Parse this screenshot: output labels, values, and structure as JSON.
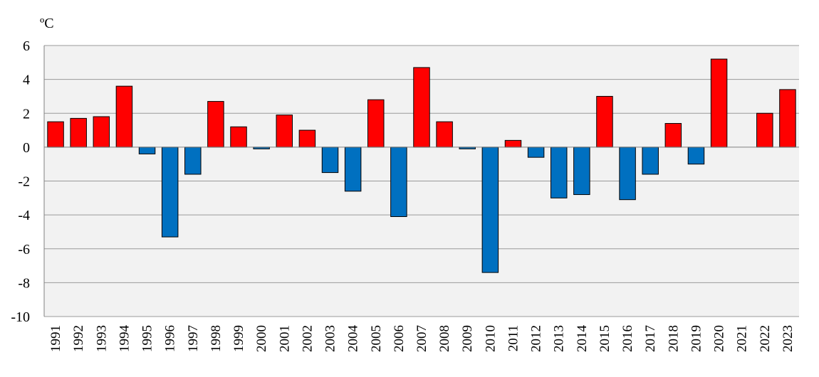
{
  "chart_data": {
    "type": "bar",
    "title": "",
    "unit_label": "ºC",
    "xlabel": "",
    "ylabel": "",
    "ylim": [
      -10,
      6
    ],
    "yticks": [
      -10,
      -8,
      -6,
      -4,
      -2,
      0,
      2,
      4,
      6
    ],
    "grid": true,
    "plot_background": "#f2f2f2",
    "colors": {
      "positive": "#ff0000",
      "negative": "#0070c0"
    },
    "categories": [
      "1991",
      "1992",
      "1993",
      "1994",
      "1995",
      "1996",
      "1997",
      "1998",
      "1999",
      "2000",
      "2001",
      "2002",
      "2003",
      "2004",
      "2005",
      "2006",
      "2007",
      "2008",
      "2009",
      "2010",
      "2011",
      "2012",
      "2013",
      "2014",
      "2015",
      "2016",
      "2017",
      "2018",
      "2019",
      "2020",
      "2021",
      "2022",
      "2023"
    ],
    "values": [
      1.5,
      1.7,
      1.8,
      3.6,
      -0.4,
      -5.3,
      -1.6,
      2.7,
      1.2,
      -0.1,
      1.9,
      1.0,
      -1.5,
      -2.6,
      2.8,
      -4.1,
      4.7,
      1.5,
      -0.1,
      -7.4,
      0.4,
      -0.6,
      -3.0,
      -2.8,
      3.0,
      -3.1,
      -1.6,
      1.4,
      -1.0,
      5.2,
      0.0,
      2.0,
      3.4
    ]
  }
}
